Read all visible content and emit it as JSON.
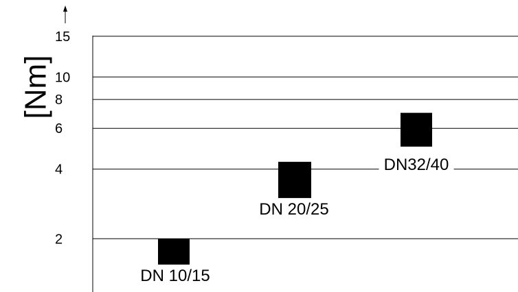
{
  "chart_data": {
    "type": "bar",
    "title": "",
    "xlabel": "",
    "ylabel": "[Nm]",
    "y_scale": "log",
    "y_ticks": [
      2,
      4,
      6,
      8,
      10,
      15
    ],
    "y_tick_labels": [
      "2",
      "4",
      "6",
      "8",
      "10",
      "15"
    ],
    "grid": true,
    "categories": [
      "DN 10/15",
      "DN 20/25",
      "DN32/40"
    ],
    "ranges": [
      {
        "category": "DN 10/15",
        "low": 1.4,
        "high": 2.0
      },
      {
        "category": "DN 20/25",
        "low": 3.0,
        "high": 4.3
      },
      {
        "category": "DN32/40",
        "low": 5.0,
        "high": 7.0
      }
    ],
    "bar_color": "#000000",
    "grid_color": "#000000"
  }
}
